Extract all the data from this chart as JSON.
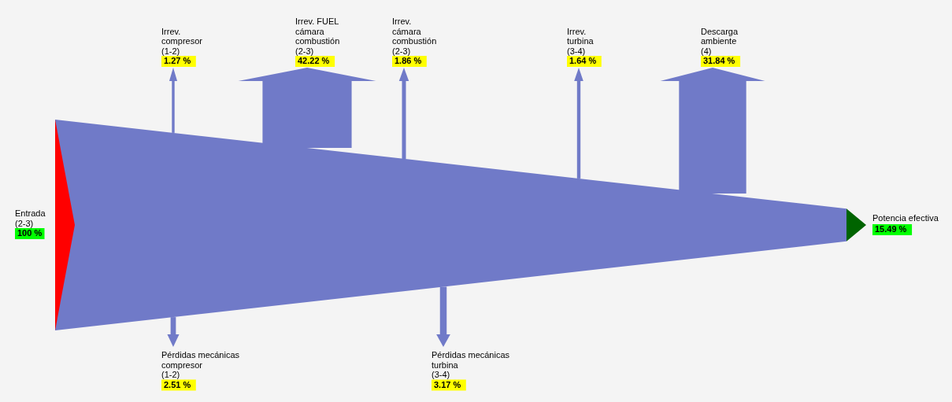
{
  "chart_data": {
    "type": "other",
    "categories": [
      "Entrada\n(2-3)",
      "Irrev.\ncompresor\n(1-2)",
      "Irrev. FUEL\ncámara\ncombustión\n(2-3)",
      "Irrev.\ncámara\ncombustión\n(2-3)",
      "Irrev.\nturbina\n(3-4)",
      "Descarga\nambiente\n(4)",
      "Pérdidas mecánicas\ncompresor\n(1-2)",
      "Pérdidas mecánicas\nturbina\n(3-4)",
      "Potencia efectiva"
    ],
    "values": [
      100,
      1.27,
      42.22,
      1.86,
      1.64,
      31.84,
      2.51,
      3.17,
      15.49
    ],
    "value_labels": [
      "100 %",
      "1.27 %",
      "42.22 %",
      "1.86 %",
      "1.64 %",
      "31.84 %",
      "2.51 %",
      "3.17 %",
      "15.49 %"
    ],
    "colors": [
      "#ff0000",
      "#707ac8",
      "#707ac8",
      "#707ac8",
      "#707ac8",
      "#707ac8",
      "#707ac8",
      "#707ac8",
      "#006400"
    ]
  }
}
